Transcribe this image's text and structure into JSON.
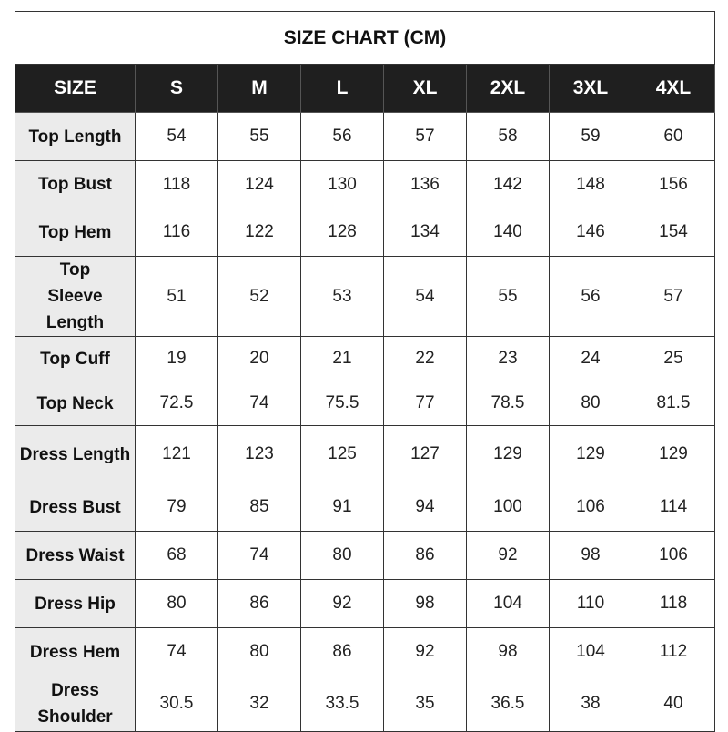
{
  "title": "SIZE CHART  (CM)",
  "columns": [
    "SIZE",
    "S",
    "M",
    "L",
    "XL",
    "2XL",
    "3XL",
    "4XL"
  ],
  "rows": [
    {
      "label": "Top Length",
      "values": [
        "54",
        "55",
        "56",
        "57",
        "58",
        "59",
        "60"
      ]
    },
    {
      "label": "Top Bust",
      "values": [
        "118",
        "124",
        "130",
        "136",
        "142",
        "148",
        "156"
      ]
    },
    {
      "label": "Top Hem",
      "values": [
        "116",
        "122",
        "128",
        "134",
        "140",
        "146",
        "154"
      ]
    },
    {
      "label": "Top Sleeve Length",
      "values": [
        "51",
        "52",
        "53",
        "54",
        "55",
        "56",
        "57"
      ]
    },
    {
      "label": "Top Cuff",
      "values": [
        "19",
        "20",
        "21",
        "22",
        "23",
        "24",
        "25"
      ]
    },
    {
      "label": "Top Neck",
      "values": [
        "72.5",
        "74",
        "75.5",
        "77",
        "78.5",
        "80",
        "81.5"
      ]
    },
    {
      "label": "Dress Length",
      "values": [
        "121",
        "123",
        "125",
        "127",
        "129",
        "129",
        "129"
      ]
    },
    {
      "label": "Dress Bust",
      "values": [
        "79",
        "85",
        "91",
        "94",
        "100",
        "106",
        "114"
      ]
    },
    {
      "label": "Dress Waist",
      "values": [
        "68",
        "74",
        "80",
        "86",
        "92",
        "98",
        "106"
      ]
    },
    {
      "label": "Dress Hip",
      "values": [
        "80",
        "86",
        "92",
        "98",
        "104",
        "110",
        "118"
      ]
    },
    {
      "label": "Dress Hem",
      "values": [
        "74",
        "80",
        "86",
        "92",
        "98",
        "104",
        "112"
      ]
    },
    {
      "label": "Dress Shoulder",
      "values": [
        "30.5",
        "32",
        "33.5",
        "35",
        "36.5",
        "38",
        "40"
      ]
    }
  ]
}
